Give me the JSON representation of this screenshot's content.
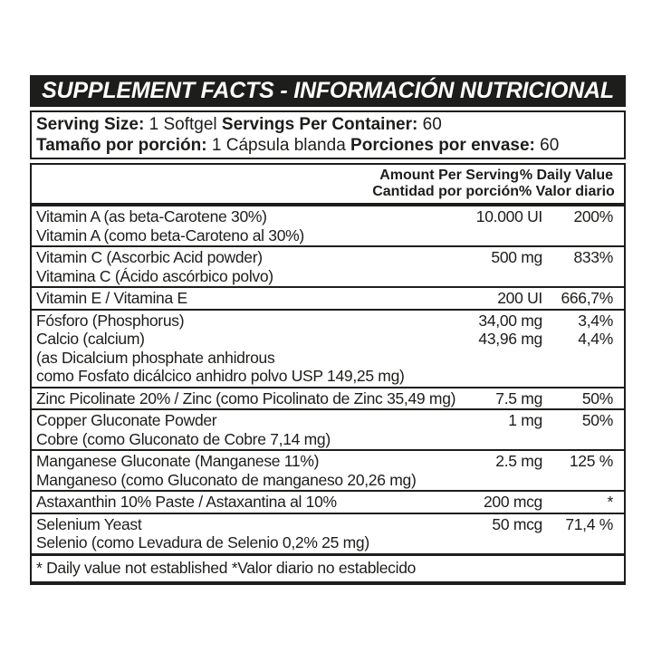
{
  "title": "SUPPLEMENT FACTS - INFORMACIÓN NUTRICIONAL",
  "serving": {
    "en": {
      "label1": "Serving Size:",
      "value1": " 1 Softgel ",
      "label2": "Servings Per Container:",
      "value2": " 60"
    },
    "es": {
      "label1": "Tamaño por porción:",
      "value1": " 1 Cápsula blanda ",
      "label2": "Porciones por envase:",
      "value2": " 60"
    }
  },
  "table": {
    "header": {
      "amount_en": "Amount Per Serving",
      "amount_es": "Cantidad por porción",
      "daily_en": "% Daily Value",
      "daily_es": "% Valor diario"
    },
    "rows": [
      {
        "lines": [
          {
            "name": "Vitamin A (as beta-Carotene 30%)",
            "amount": "10.000 UI",
            "percent": "200%"
          },
          {
            "name": "Vitamin A (como beta-Caroteno al 30%)"
          }
        ]
      },
      {
        "lines": [
          {
            "name": "Vitamin C (Ascorbic Acid powder)",
            "amount": "500 mg",
            "percent": "833%"
          },
          {
            "name": "Vitamina C (Ácido ascórbico polvo)"
          }
        ]
      },
      {
        "lines": [
          {
            "name": "Vitamin E / Vitamina E",
            "amount": "200 UI",
            "percent": "666,7%"
          }
        ]
      },
      {
        "lines": [
          {
            "name": "Fósforo (Phosphorus)",
            "amount": "34,00 mg",
            "percent": "3,4%"
          },
          {
            "name": "Calcio (calcium)",
            "amount": "43,96 mg",
            "percent": "4,4%"
          },
          {
            "name": "(as Dicalcium phosphate anhidrous"
          },
          {
            "name": "como Fosfato dicálcico anhidro polvo USP 149,25 mg)"
          }
        ]
      },
      {
        "lines": [
          {
            "name": "Zinc Picolinate 20% / Zinc (como Picolinato de Zinc 35,49 mg)",
            "amount": "7.5 mg",
            "percent": "50%"
          }
        ]
      },
      {
        "lines": [
          {
            "name": "Copper Gluconate Powder",
            "amount": "1 mg",
            "percent": "50%"
          },
          {
            "name": "Cobre (como Gluconato de Cobre 7,14 mg)"
          }
        ]
      },
      {
        "lines": [
          {
            "name": "Manganese Gluconate (Manganese 11%)",
            "amount": "2.5 mg",
            "percent": "125 %"
          },
          {
            "name": "Manganeso (como Gluconato de manganeso 20,26 mg)"
          }
        ]
      },
      {
        "lines": [
          {
            "name": "Astaxanthin 10% Paste / Astaxantina al 10%",
            "amount": "200 mcg",
            "percent": "*"
          }
        ]
      },
      {
        "lines": [
          {
            "name": "Selenium Yeast",
            "amount": "50 mcg",
            "percent": "71,4 %"
          },
          {
            "name": "Selenio (como Levadura de Selenio 0,2% 25 mg)"
          }
        ]
      }
    ]
  },
  "footnote": "* Daily value not established *Valor diario no establecido",
  "colors": {
    "ink": "#1d1d1b",
    "paper": "#ffffff"
  }
}
